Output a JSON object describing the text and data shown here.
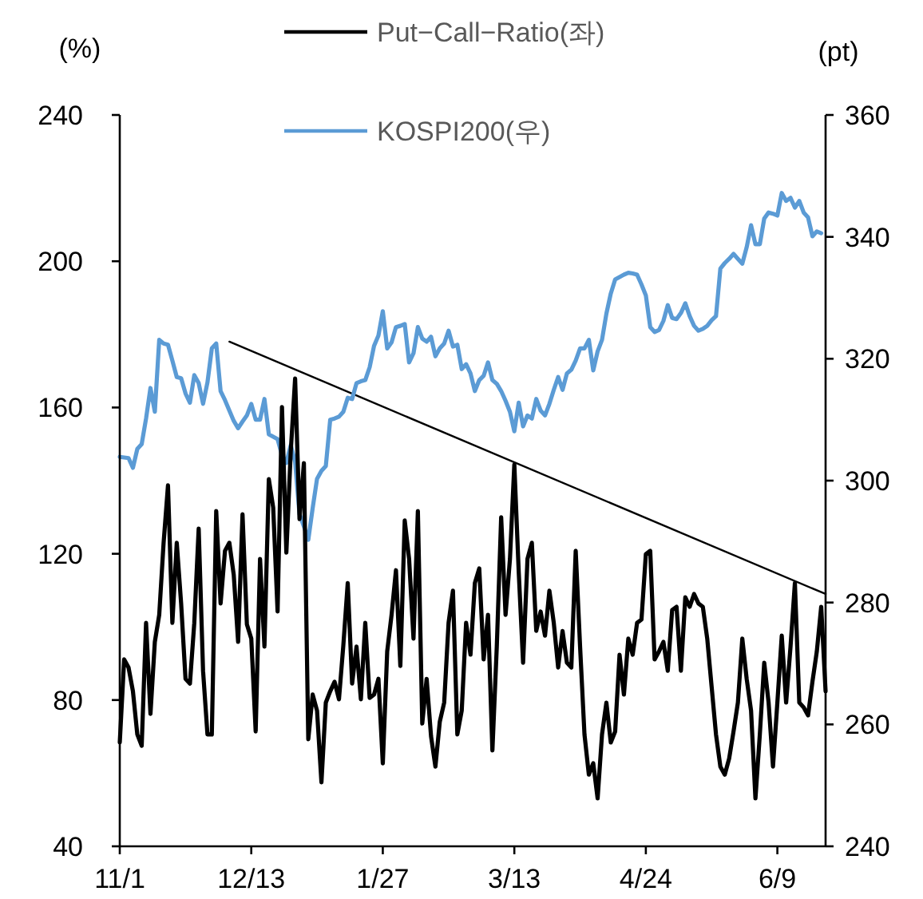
{
  "chart_data": {
    "type": "line",
    "ylabel": "(%)",
    "y2label": "(pt)",
    "categories": [
      "11/1",
      null,
      null,
      null,
      null,
      null,
      null,
      null,
      null,
      null,
      null,
      null,
      null,
      null,
      null,
      null,
      null,
      null,
      null,
      null,
      null,
      null,
      null,
      null,
      null,
      null,
      null,
      null,
      null,
      null,
      "12/13",
      null,
      null,
      null,
      null,
      null,
      null,
      null,
      null,
      null,
      null,
      null,
      null,
      null,
      null,
      null,
      null,
      null,
      null,
      null,
      null,
      null,
      null,
      null,
      null,
      null,
      null,
      null,
      null,
      null,
      "1/27",
      null,
      null,
      null,
      null,
      null,
      null,
      null,
      null,
      null,
      null,
      null,
      null,
      null,
      null,
      null,
      null,
      null,
      null,
      null,
      null,
      null,
      null,
      null,
      null,
      null,
      null,
      null,
      null,
      null,
      "3/13",
      null,
      null,
      null,
      null,
      null,
      null,
      null,
      null,
      null,
      null,
      null,
      null,
      null,
      null,
      null,
      null,
      null,
      null,
      null,
      null,
      null,
      null,
      null,
      null,
      null,
      null,
      null,
      null,
      null,
      "4/24",
      null,
      null,
      null,
      null,
      null,
      null,
      null,
      null,
      null,
      null,
      null,
      null,
      null,
      null,
      null,
      null,
      null,
      null,
      null,
      null,
      null,
      null,
      null,
      null,
      null,
      null,
      null,
      null,
      null,
      "6/9",
      null,
      null,
      null,
      null,
      null,
      null,
      null,
      null,
      null,
      null,
      null
    ],
    "ylim": [
      40,
      240
    ],
    "yticks": [
      40,
      80,
      120,
      160,
      200,
      240
    ],
    "y2lim": [
      240,
      360
    ],
    "y2ticks": [
      240,
      260,
      280,
      300,
      320,
      340,
      360
    ],
    "grid": false,
    "legend": "top",
    "marker": "none",
    "line_style": "solid",
    "series": [
      {
        "name": "Put−Call−Ratio(좌)",
        "color": "#000000",
        "axis": "y",
        "values": [
          68.4,
          91.1,
          88.9,
          82.4,
          70.6,
          67.5,
          101.1,
          76.2,
          95.9,
          103.3,
          123.0,
          138.7,
          101.1,
          123.0,
          106.4,
          85.8,
          84.5,
          101.1,
          126.9,
          88.0,
          70.6,
          70.6,
          131.7,
          106.4,
          120.8,
          123.0,
          114.2,
          95.9,
          130.8,
          100.7,
          96.8,
          71.4,
          118.6,
          94.6,
          140.4,
          132.6,
          104.2,
          160.1,
          120.3,
          147.9,
          167.9,
          129.5,
          144.8,
          69.3,
          81.5,
          77.1,
          57.5,
          79.3,
          82.4,
          85.0,
          80.2,
          95.0,
          112.0,
          84.5,
          94.6,
          80.2,
          101.1,
          80.6,
          81.5,
          85.8,
          62.7,
          93.3,
          103.3,
          115.5,
          89.3,
          129.1,
          118.6,
          96.8,
          131.7,
          73.6,
          85.8,
          70.1,
          61.8,
          74.1,
          79.3,
          101.1,
          109.9,
          70.6,
          77.1,
          101.1,
          92.4,
          112.0,
          116.0,
          91.1,
          103.3,
          66.2,
          94.6,
          130.0,
          103.3,
          118.6,
          144.4,
          115.1,
          90.2,
          118.6,
          123.0,
          98.9,
          104.2,
          97.6,
          109.9,
          101.1,
          88.9,
          98.9,
          90.2,
          88.9,
          120.8,
          94.6,
          70.6,
          59.6,
          62.7,
          53.1,
          70.6,
          79.3,
          68.4,
          71.4,
          92.4,
          81.5,
          96.8,
          92.4,
          101.1,
          102.0,
          119.9,
          120.8,
          91.1,
          93.3,
          95.9,
          88.0,
          104.6,
          105.5,
          88.0,
          108.1,
          105.5,
          109.0,
          106.4,
          105.5,
          96.8,
          83.7,
          70.6,
          61.8,
          59.6,
          64.0,
          71.4,
          79.3,
          96.8,
          85.8,
          77.1,
          53.1,
          70.6,
          90.2,
          79.3,
          61.8,
          79.3,
          97.6,
          79.3,
          94.6,
          112.0,
          79.3,
          78.0,
          75.8,
          85.0,
          93.3,
          105.5,
          82.4
        ]
      },
      {
        "name": "KOSPI200(우)",
        "color": "#5b9bd5",
        "axis": "y2",
        "values": [
          303.9,
          303.8,
          303.7,
          302.1,
          305.2,
          306.0,
          310.2,
          315.2,
          311.3,
          323.1,
          322.5,
          322.3,
          319.7,
          317.0,
          316.8,
          314.3,
          312.8,
          317.3,
          316.0,
          312.6,
          316.1,
          321.7,
          322.5,
          314.7,
          313.2,
          311.5,
          309.8,
          308.6,
          309.7,
          310.7,
          312.6,
          310.0,
          310.0,
          313.4,
          307.6,
          307.2,
          306.8,
          304.2,
          302.9,
          305.8,
          303.1,
          294.5,
          292.5,
          290.3,
          295.5,
          300.3,
          301.6,
          302.4,
          310.0,
          310.2,
          310.5,
          311.3,
          313.6,
          313.4,
          316.0,
          316.3,
          316.5,
          318.6,
          322.1,
          323.8,
          327.8,
          321.7,
          322.7,
          325.2,
          325.4,
          325.7,
          319.4,
          320.9,
          325.2,
          323.3,
          322.8,
          323.6,
          320.4,
          321.7,
          322.5,
          324.6,
          322.0,
          322.3,
          318.3,
          319.1,
          317.6,
          314.7,
          316.5,
          317.2,
          319.4,
          316.5,
          315.9,
          314.7,
          313.1,
          311.3,
          308.1,
          312.8,
          308.9,
          310.7,
          310.2,
          313.4,
          311.5,
          310.7,
          312.6,
          314.9,
          317.0,
          314.9,
          317.6,
          318.2,
          319.7,
          321.7,
          321.7,
          323.1,
          318.1,
          321.2,
          323.1,
          327.4,
          330.7,
          333.0,
          333.4,
          333.8,
          334.1,
          334.0,
          333.8,
          332.2,
          330.4,
          325.2,
          324.4,
          324.7,
          326.2,
          328.8,
          326.7,
          326.5,
          327.5,
          329.1,
          327.0,
          325.4,
          324.6,
          324.9,
          325.4,
          326.3,
          327.0,
          334.8,
          335.7,
          336.4,
          337.2,
          336.4,
          335.6,
          338.3,
          341.9,
          338.8,
          338.8,
          343.0,
          344.0,
          343.8,
          343.5,
          347.2,
          345.9,
          346.4,
          344.8,
          345.9,
          344.0,
          343.2,
          340.1,
          340.9,
          340.6,
          null
        ]
      },
      {
        "type": "line",
        "color": "#000000",
        "axis": "y",
        "values": [
          null,
          null,
          null,
          null,
          null,
          null,
          null,
          null,
          null,
          null,
          null,
          null,
          null,
          null,
          null,
          null,
          null,
          null,
          null,
          null,
          null,
          null,
          null,
          null,
          null,
          178.0,
          null,
          null,
          null,
          null,
          null,
          null,
          null,
          null,
          null,
          null,
          null,
          null,
          null,
          null,
          null,
          null,
          null,
          null,
          null,
          null,
          null,
          null,
          null,
          null,
          null,
          null,
          null,
          null,
          null,
          null,
          null,
          null,
          null,
          null,
          null,
          null,
          null,
          null,
          null,
          null,
          null,
          null,
          null,
          null,
          null,
          null,
          null,
          null,
          null,
          null,
          null,
          null,
          null,
          null,
          null,
          null,
          null,
          null,
          null,
          null,
          null,
          null,
          null,
          null,
          null,
          null,
          null,
          null,
          null,
          null,
          null,
          null,
          null,
          null,
          null,
          null,
          null,
          null,
          null,
          null,
          null,
          null,
          null,
          null,
          null,
          null,
          null,
          null,
          null,
          null,
          null,
          null,
          null,
          null,
          null,
          null,
          null,
          null,
          null,
          null,
          null,
          null,
          null,
          null,
          null,
          null,
          null,
          null,
          null,
          null,
          null,
          null,
          null,
          null,
          null,
          null,
          null,
          null,
          null,
          null,
          null,
          null,
          null,
          null,
          null,
          null,
          null,
          null,
          null,
          null,
          null,
          null,
          null,
          null,
          null,
          109.0
        ]
      }
    ]
  }
}
